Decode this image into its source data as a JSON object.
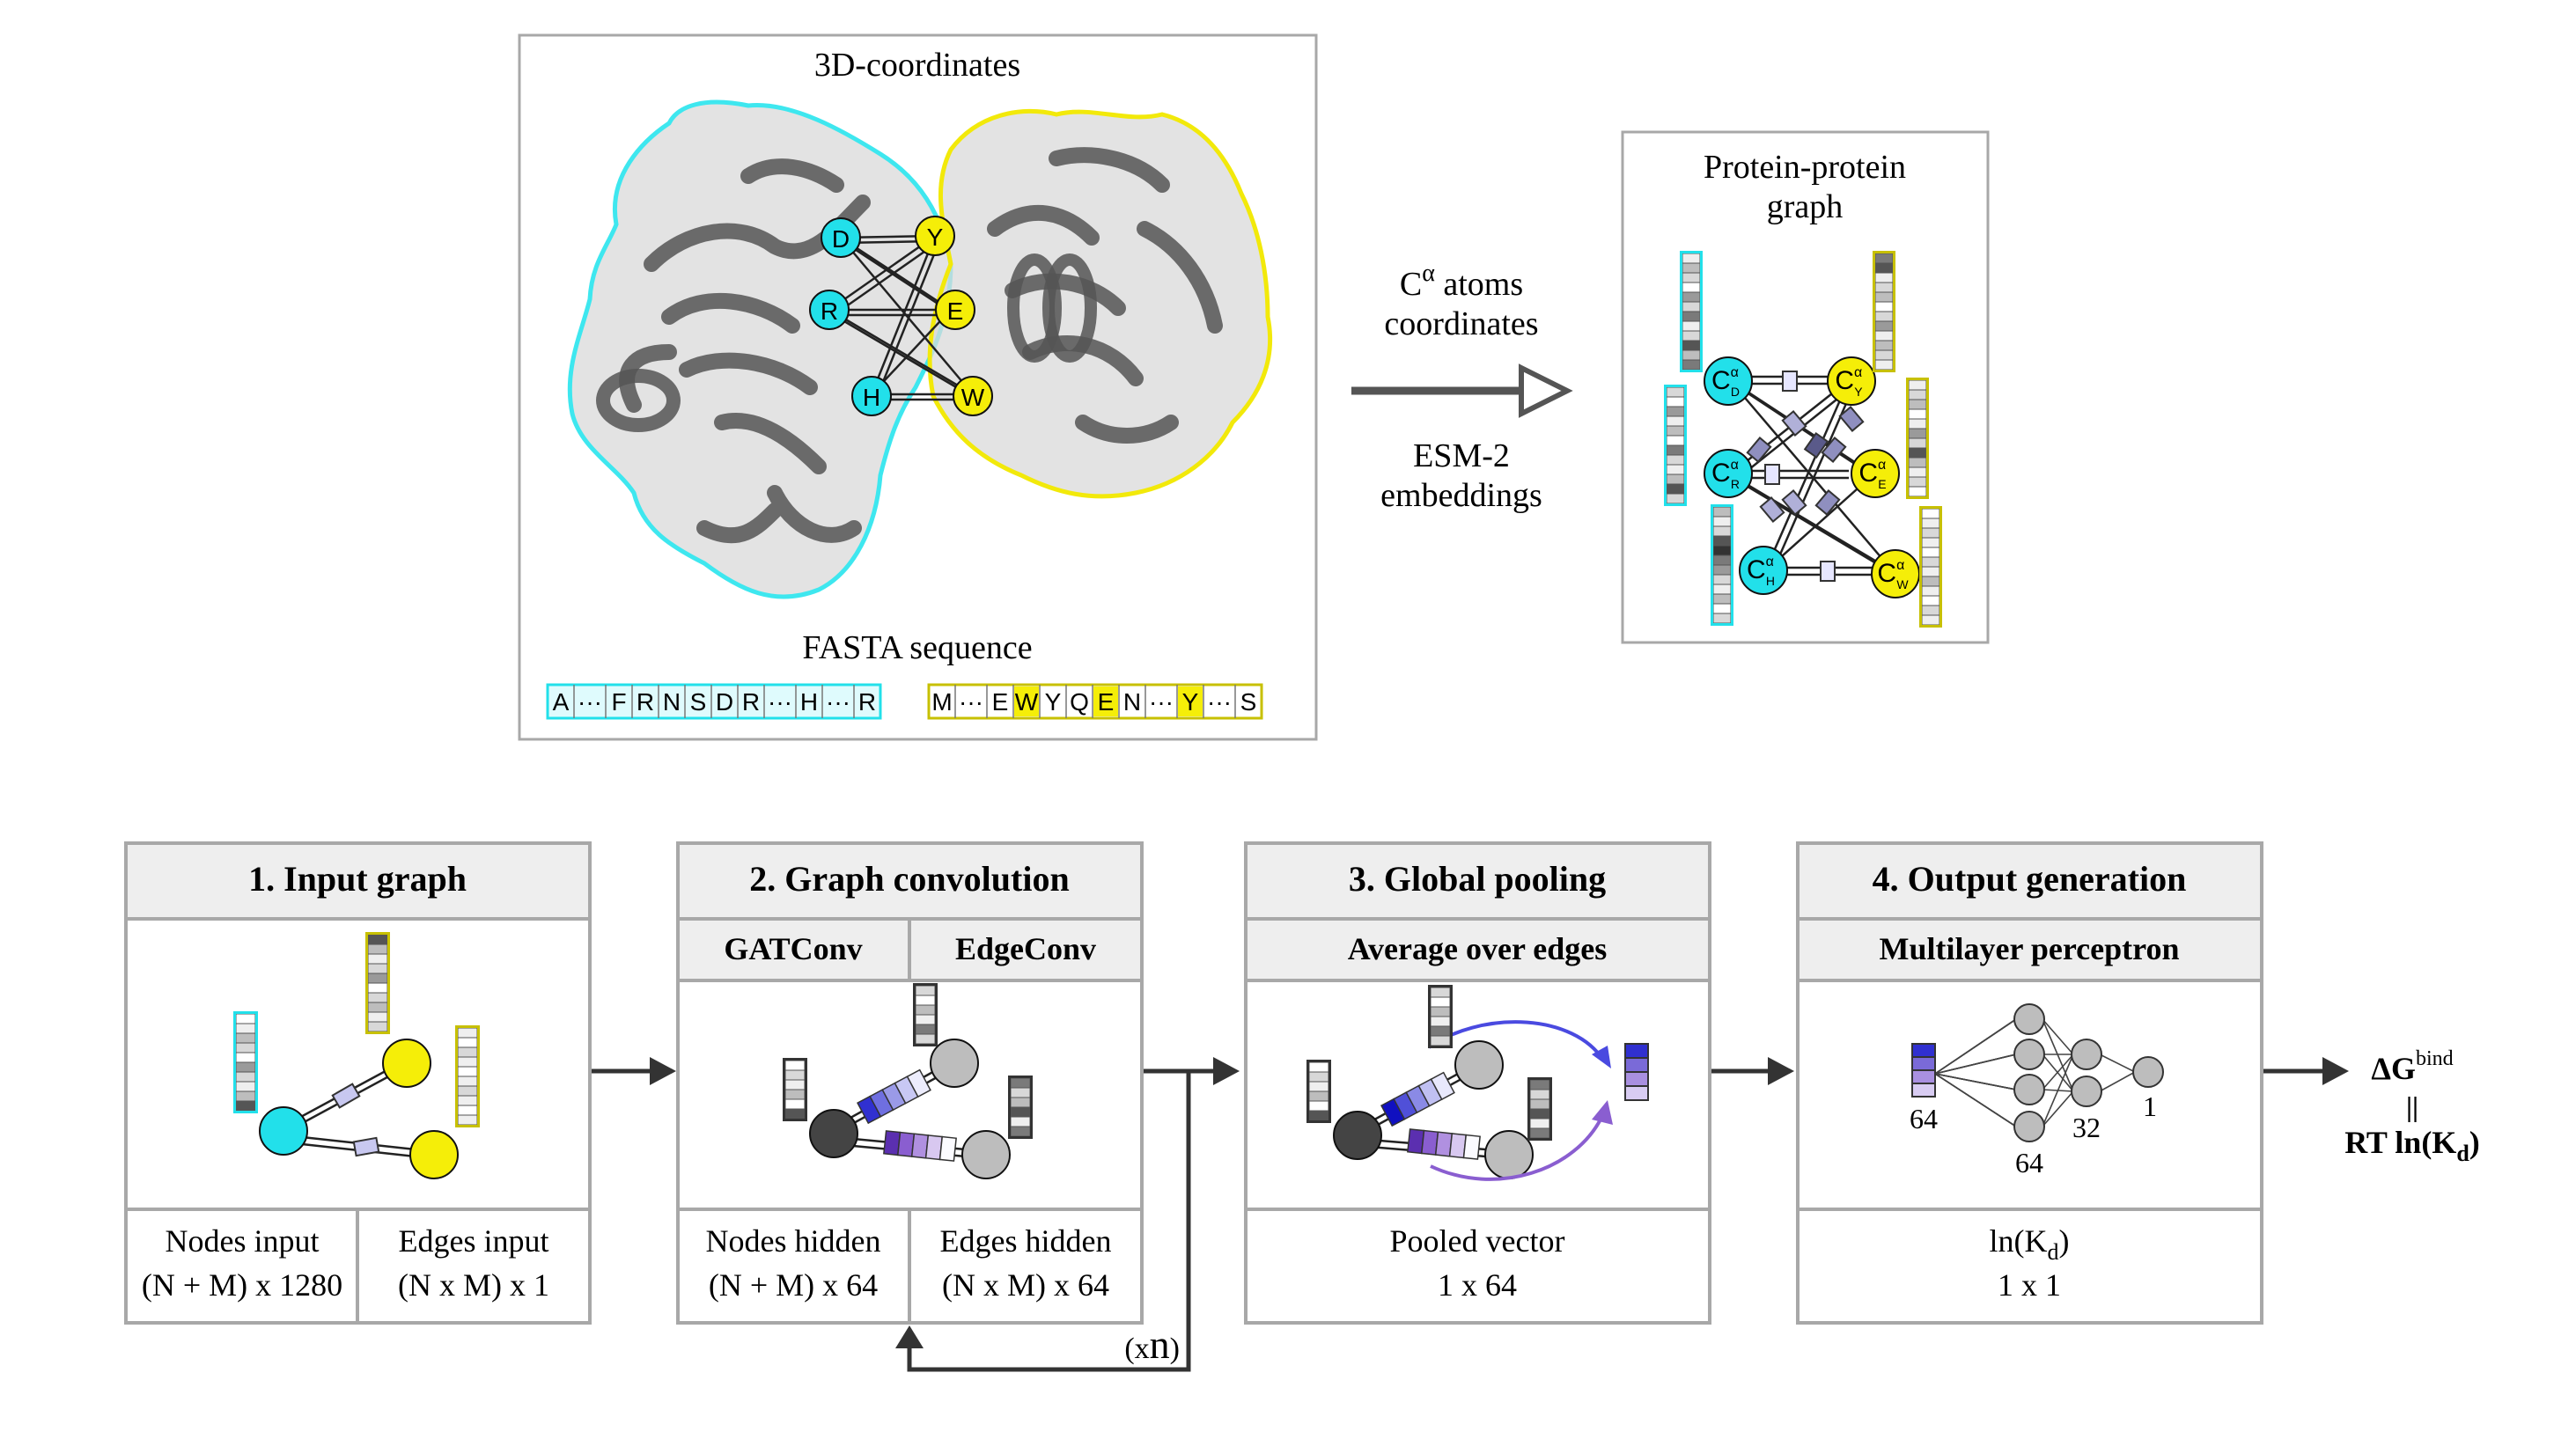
{
  "top": {
    "coords_title": "3D-coordinates",
    "fasta_title": "FASTA sequence",
    "graph_title_line1": "Protein-protein",
    "graph_title_line2": "graph",
    "arrow_label_top_prefix": "C",
    "arrow_label_top_sup": "α",
    "arrow_label_top_rest": " atoms",
    "arrow_label_top_line2": "coordinates",
    "arrow_label_bottom_line1": "ESM-2",
    "arrow_label_bottom_line2": "embeddings",
    "residues_a": [
      "D",
      "R",
      "H"
    ],
    "residues_b": [
      "Y",
      "E",
      "W"
    ],
    "node_prefix": "C",
    "node_sup": "α",
    "sequence_a": [
      "A",
      "···",
      "F",
      "R",
      "N",
      "S",
      "D",
      "R",
      "···",
      "H",
      "···",
      "R"
    ],
    "sequence_b": [
      "M",
      "···",
      "E",
      "W",
      "Y",
      "Q",
      "E",
      "N",
      "···",
      "Y",
      "···",
      "S"
    ]
  },
  "stages": {
    "s1": {
      "title": "1. Input graph",
      "nodes_label": "Nodes input",
      "nodes_dim": "(N + M) x 1280",
      "edges_label": "Edges input",
      "edges_dim": "(N x M) x 1"
    },
    "s2": {
      "title": "2. Graph convolution",
      "sub_left": "GATConv",
      "sub_right": "EdgeConv",
      "nodes_label": "Nodes hidden",
      "nodes_dim": "(N + M) x 64",
      "edges_label": "Edges hidden",
      "edges_dim": "(N x M) x 64",
      "loop_prefix": "(x",
      "loop_n": "n",
      "loop_suffix": ")"
    },
    "s3": {
      "title": "3. Global pooling",
      "sub": "Average over edges",
      "out_label": "Pooled vector",
      "out_dim": "1 x 64"
    },
    "s4": {
      "title": "4. Output generation",
      "sub": "Multilayer perceptron",
      "out_label_prefix": "ln(K",
      "out_label_sub": "d",
      "out_label_suffix": ")",
      "out_dim": "1 x 1",
      "mlp_labels": [
        "64",
        "64",
        "32",
        "1"
      ]
    }
  },
  "output": {
    "dg_main": "ΔG",
    "dg_sup": "bind",
    "equals": "||",
    "rt_prefix": "RT ln(K",
    "rt_sub": "d",
    "rt_suffix": ")"
  },
  "colors": {
    "cyan": "#22e0ea",
    "yellow": "#f5ee08",
    "frame": "#a8a8a8",
    "header_bg": "#eeeeee",
    "arrow": "#333333",
    "protein": "#555555"
  }
}
